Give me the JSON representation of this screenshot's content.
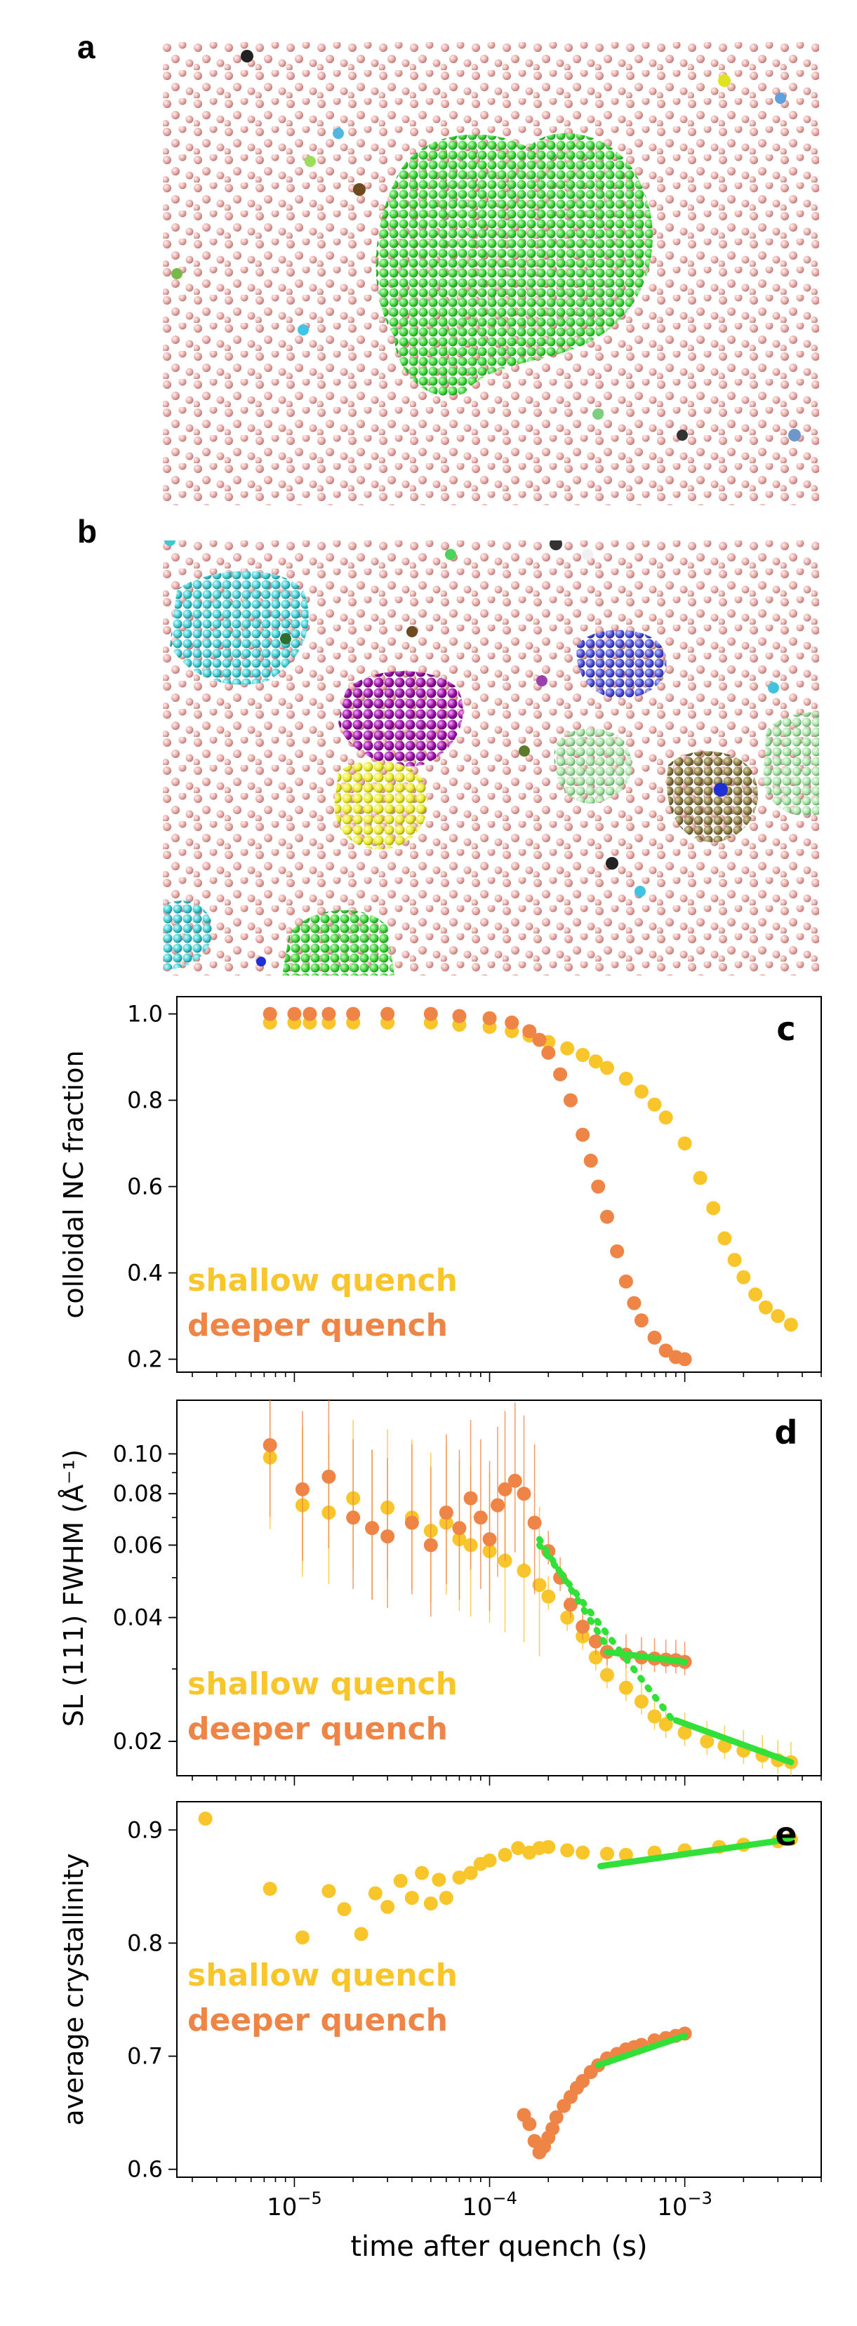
{
  "panels": {
    "a": {
      "label": "a"
    },
    "b": {
      "label": "b"
    }
  },
  "colors": {
    "shallow": "#f8c52a",
    "deeper": "#ee8446",
    "fit": "#33e03a",
    "free_particle": "#e8b0ae"
  },
  "chart_data": [
    {
      "id": "c",
      "type": "scatter",
      "panel_label": "c",
      "xscale": "log",
      "xlim": [
        2.5e-06,
        0.005
      ],
      "ylabel": "colloidal NC fraction",
      "ylim": [
        0.17,
        1.04
      ],
      "yticks": [
        0.2,
        0.4,
        0.6,
        0.8,
        1.0
      ],
      "ytick_labels": [
        "0.2",
        "0.4",
        "0.6",
        "0.8",
        "1.0"
      ],
      "legend": [
        "shallow quench",
        "deeper quench"
      ],
      "legend_position": "bottom-left",
      "series": [
        {
          "name": "shallow quench",
          "color": "#f8c52a",
          "x": [
            7.5e-06,
            1e-05,
            1.2e-05,
            1.5e-05,
            2e-05,
            3e-05,
            5e-05,
            7e-05,
            0.0001,
            0.00013,
            0.00016,
            0.0002,
            0.00025,
            0.0003,
            0.00035,
            0.0004,
            0.0005,
            0.0006,
            0.0007,
            0.0008,
            0.001,
            0.0012,
            0.0014,
            0.0016,
            0.0018,
            0.002,
            0.0023,
            0.0026,
            0.003,
            0.0035
          ],
          "y": [
            0.98,
            0.98,
            0.98,
            0.98,
            0.98,
            0.98,
            0.98,
            0.975,
            0.97,
            0.96,
            0.95,
            0.935,
            0.92,
            0.905,
            0.89,
            0.875,
            0.85,
            0.82,
            0.79,
            0.76,
            0.7,
            0.62,
            0.55,
            0.48,
            0.43,
            0.39,
            0.35,
            0.32,
            0.3,
            0.28
          ]
        },
        {
          "name": "deeper quench",
          "color": "#ee8446",
          "x": [
            7.5e-06,
            1e-05,
            1.2e-05,
            1.5e-05,
            2e-05,
            3e-05,
            5e-05,
            7e-05,
            0.0001,
            0.00013,
            0.00016,
            0.00018,
            0.0002,
            0.00023,
            0.00026,
            0.0003,
            0.00033,
            0.00036,
            0.0004,
            0.00045,
            0.0005,
            0.00055,
            0.0006,
            0.0007,
            0.0008,
            0.0009,
            0.001
          ],
          "y": [
            1.0,
            1.0,
            1.0,
            1.0,
            1.0,
            1.0,
            1.0,
            0.995,
            0.99,
            0.98,
            0.96,
            0.94,
            0.91,
            0.86,
            0.8,
            0.72,
            0.66,
            0.6,
            0.53,
            0.45,
            0.38,
            0.33,
            0.29,
            0.25,
            0.22,
            0.205,
            0.2
          ]
        }
      ]
    },
    {
      "id": "d",
      "type": "scatter",
      "panel_label": "d",
      "xscale": "log",
      "xlim": [
        2.5e-06,
        0.005
      ],
      "yscale": "log",
      "ylim": [
        0.0165,
        0.135
      ],
      "ylabel": "SL (111) FWHM (Å⁻¹)",
      "yticks": [
        0.02,
        0.04,
        0.06,
        0.08,
        0.1
      ],
      "ytick_labels": [
        "0.02",
        "0.04",
        "0.06",
        "0.08",
        "0.10"
      ],
      "legend": [
        "shallow quench",
        "deeper quench"
      ],
      "legend_position": "bottom-left",
      "series": [
        {
          "name": "shallow quench",
          "color": "#f8c52a",
          "x": [
            7.5e-06,
            1.1e-05,
            1.5e-05,
            2e-05,
            2.5e-05,
            3e-05,
            4e-05,
            5e-05,
            6e-05,
            7e-05,
            8e-05,
            0.0001,
            0.00012,
            0.00015,
            0.00018,
            0.0002,
            0.00025,
            0.0003,
            0.00035,
            0.0004,
            0.0005,
            0.0006,
            0.0007,
            0.0008,
            0.001,
            0.0013,
            0.0016,
            0.002,
            0.0025,
            0.003,
            0.0035
          ],
          "y": [
            0.098,
            0.075,
            0.072,
            0.078,
            0.066,
            0.074,
            0.07,
            0.065,
            0.068,
            0.062,
            0.06,
            0.058,
            0.055,
            0.052,
            0.048,
            0.045,
            0.04,
            0.036,
            0.032,
            0.029,
            0.027,
            0.025,
            0.023,
            0.022,
            0.021,
            0.02,
            0.0195,
            0.019,
            0.0185,
            0.018,
            0.0178
          ]
        },
        {
          "name": "deeper quench",
          "color": "#ee8446",
          "x": [
            7.5e-06,
            1.1e-05,
            1.5e-05,
            2e-05,
            2.5e-05,
            3e-05,
            4e-05,
            5e-05,
            6e-05,
            7e-05,
            8e-05,
            9e-05,
            0.0001,
            0.00011,
            0.00012,
            0.000135,
            0.00015,
            0.00017,
            0.0002,
            0.00023,
            0.00026,
            0.0003,
            0.00035,
            0.0004,
            0.0005,
            0.0006,
            0.0007,
            0.0008,
            0.0009,
            0.001
          ],
          "y": [
            0.105,
            0.082,
            0.088,
            0.07,
            0.066,
            0.063,
            0.068,
            0.06,
            0.072,
            0.066,
            0.078,
            0.07,
            0.062,
            0.075,
            0.082,
            0.086,
            0.08,
            0.068,
            0.058,
            0.05,
            0.043,
            0.038,
            0.035,
            0.033,
            0.0325,
            0.032,
            0.0318,
            0.0316,
            0.0315,
            0.0312
          ]
        },
        {
          "name": "fit (shallow, early)",
          "color": "#33e03a",
          "style": "dotted",
          "x": [
            0.00018,
            0.0009
          ],
          "y": [
            0.06,
            0.022
          ]
        },
        {
          "name": "fit (shallow, late)",
          "color": "#33e03a",
          "style": "solid",
          "x": [
            0.0009,
            0.0035
          ],
          "y": [
            0.0225,
            0.0178
          ]
        },
        {
          "name": "fit (deeper, early)",
          "color": "#33e03a",
          "style": "dotted",
          "x": [
            0.00018,
            0.0004
          ],
          "y": [
            0.062,
            0.034
          ]
        },
        {
          "name": "fit (deeper, late)",
          "color": "#33e03a",
          "style": "solid",
          "x": [
            0.0004,
            0.001
          ],
          "y": [
            0.033,
            0.0312
          ]
        }
      ]
    },
    {
      "id": "e",
      "type": "scatter",
      "panel_label": "e",
      "xscale": "log",
      "xlim": [
        2.5e-06,
        0.005
      ],
      "xlabel": "time after quench (s)",
      "xticks": [
        1e-05,
        0.0001,
        0.001
      ],
      "xtick_base": "10",
      "xtick_exponents": [
        "−5",
        "−4",
        "−3"
      ],
      "ylabel": "average crystallinity",
      "ylim": [
        0.593,
        0.925
      ],
      "yticks": [
        0.6,
        0.7,
        0.8,
        0.9
      ],
      "ytick_labels": [
        "0.6",
        "0.7",
        "0.8",
        "0.9"
      ],
      "legend": [
        "shallow quench",
        "deeper quench"
      ],
      "legend_position": "center-left",
      "series": [
        {
          "name": "shallow quench",
          "color": "#f8c52a",
          "x": [
            3.5e-06,
            7.5e-06,
            1.1e-05,
            1.5e-05,
            1.8e-05,
            2.2e-05,
            2.6e-05,
            3e-05,
            3.5e-05,
            4e-05,
            4.5e-05,
            5e-05,
            5.5e-05,
            6e-05,
            7e-05,
            8e-05,
            9e-05,
            0.0001,
            0.00012,
            0.00014,
            0.00016,
            0.00018,
            0.0002,
            0.00025,
            0.0003,
            0.0004,
            0.0005,
            0.0007,
            0.001,
            0.0015,
            0.002,
            0.003,
            0.0035
          ],
          "y": [
            0.91,
            0.848,
            0.805,
            0.846,
            0.83,
            0.808,
            0.844,
            0.832,
            0.855,
            0.84,
            0.862,
            0.835,
            0.856,
            0.84,
            0.858,
            0.862,
            0.87,
            0.873,
            0.878,
            0.884,
            0.88,
            0.884,
            0.885,
            0.882,
            0.88,
            0.879,
            0.878,
            0.88,
            0.882,
            0.885,
            0.887,
            0.89,
            0.892
          ]
        },
        {
          "name": "deeper quench",
          "color": "#ee8446",
          "x": [
            0.00015,
            0.00016,
            0.00017,
            0.00018,
            0.00019,
            0.0002,
            0.00021,
            0.00022,
            0.00024,
            0.00026,
            0.00028,
            0.0003,
            0.00033,
            0.00036,
            0.0004,
            0.00045,
            0.0005,
            0.00055,
            0.0006,
            0.0007,
            0.0008,
            0.0009,
            0.001
          ],
          "y": [
            0.648,
            0.64,
            0.625,
            0.615,
            0.62,
            0.628,
            0.636,
            0.646,
            0.656,
            0.664,
            0.672,
            0.678,
            0.686,
            0.692,
            0.698,
            0.702,
            0.706,
            0.708,
            0.71,
            0.714,
            0.716,
            0.718,
            0.72
          ]
        },
        {
          "name": "fit (shallow)",
          "color": "#33e03a",
          "style": "solid",
          "x": [
            0.00037,
            0.0035
          ],
          "y": [
            0.868,
            0.892
          ]
        },
        {
          "name": "fit (deeper)",
          "color": "#33e03a",
          "style": "solid",
          "x": [
            0.00036,
            0.001
          ],
          "y": [
            0.692,
            0.718
          ]
        }
      ]
    }
  ]
}
